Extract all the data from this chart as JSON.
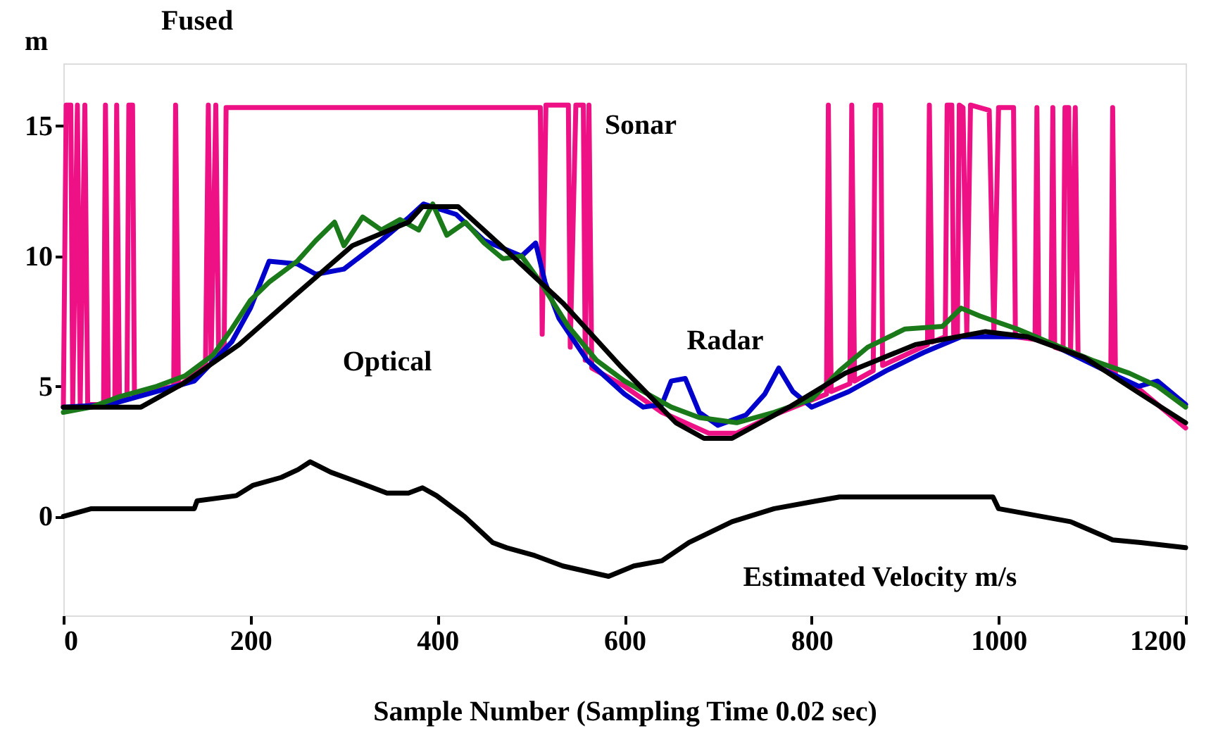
{
  "chart_data": {
    "type": "line",
    "xlabel": "Sample Number (Sampling Time 0.02 sec)",
    "ylabel": "m",
    "xlim": [
      0,
      1200
    ],
    "xticks": [
      0,
      200,
      400,
      600,
      800,
      1000,
      1200
    ],
    "ylim": [
      -3.8,
      17.4
    ],
    "yticks": [
      0,
      5,
      10,
      15
    ],
    "grid": false,
    "line_style": "solid",
    "marker": "none",
    "series": [
      {
        "color": "#ee1185",
        "x": [
          0,
          3,
          8,
          10,
          15,
          18,
          23,
          26,
          43,
          45,
          48,
          55,
          57,
          60,
          68,
          70,
          74,
          76,
          118,
          120,
          123,
          152,
          155,
          158,
          163,
          166,
          172,
          174,
          510,
          512,
          516,
          540,
          542,
          548,
          556,
          558,
          562,
          565,
          600,
          640,
          690,
          720,
          760,
          816,
          818,
          821,
          841,
          843,
          846,
          866,
          868,
          874,
          876,
          924,
          926,
          929,
          943,
          945,
          950,
          952,
          956,
          958,
          962,
          966,
          970,
          990,
          995,
          1000,
          1016,
          1018,
          1039,
          1041,
          1043,
          1056,
          1058,
          1060,
          1069,
          1071,
          1075,
          1077,
          1082,
          1085,
          1120,
          1122,
          1125,
          1150,
          1200
        ],
        "values": [
          4.2,
          15.8,
          15.8,
          4.3,
          15.8,
          4.3,
          15.8,
          4.3,
          4.3,
          15.8,
          4.4,
          4.4,
          15.8,
          4.5,
          4.5,
          15.8,
          15.8,
          4.7,
          5.0,
          15.8,
          5.0,
          5.8,
          15.8,
          6.0,
          15.8,
          6.3,
          6.6,
          15.7,
          15.7,
          7.0,
          15.8,
          15.8,
          6.5,
          15.8,
          15.8,
          6.0,
          15.8,
          5.7,
          5.0,
          4.0,
          3.2,
          3.2,
          3.9,
          4.7,
          15.8,
          4.8,
          5.1,
          15.8,
          5.2,
          5.6,
          15.8,
          15.8,
          5.8,
          6.6,
          15.8,
          6.7,
          6.9,
          15.8,
          15.8,
          7.0,
          7.0,
          15.8,
          15.7,
          7.0,
          15.8,
          15.6,
          7.0,
          15.7,
          15.7,
          6.9,
          6.8,
          15.7,
          6.8,
          6.6,
          15.7,
          6.5,
          6.4,
          15.7,
          15.7,
          6.3,
          15.7,
          6.2,
          5.5,
          15.7,
          5.4,
          4.9,
          3.4
        ]
      },
      {
        "color": "#0000cc",
        "x": [
          0,
          50,
          100,
          140,
          180,
          200,
          220,
          250,
          270,
          300,
          340,
          370,
          385,
          420,
          450,
          490,
          505,
          515,
          530,
          560,
          600,
          620,
          640,
          650,
          665,
          680,
          700,
          730,
          750,
          765,
          780,
          800,
          840,
          880,
          920,
          960,
          1000,
          1040,
          1080,
          1120,
          1150,
          1170,
          1200
        ],
        "values": [
          4.2,
          4.3,
          4.8,
          5.2,
          6.7,
          8.0,
          9.8,
          9.7,
          9.3,
          9.5,
          10.6,
          11.5,
          12.0,
          11.6,
          10.6,
          10.0,
          10.5,
          9.0,
          7.6,
          6.0,
          4.7,
          4.2,
          4.3,
          5.2,
          5.3,
          4.0,
          3.5,
          3.9,
          4.7,
          5.7,
          4.8,
          4.2,
          4.8,
          5.6,
          6.3,
          6.9,
          6.9,
          6.9,
          6.2,
          5.5,
          5.0,
          5.2,
          4.3
        ]
      },
      {
        "color": "#1a7a1a",
        "x": [
          0,
          30,
          60,
          100,
          130,
          160,
          180,
          200,
          220,
          250,
          270,
          290,
          300,
          320,
          340,
          360,
          380,
          395,
          410,
          430,
          450,
          470,
          490,
          510,
          540,
          570,
          600,
          620,
          650,
          680,
          720,
          760,
          800,
          830,
          860,
          900,
          940,
          960,
          980,
          1020,
          1060,
          1100,
          1140,
          1170,
          1200
        ],
        "values": [
          4.0,
          4.2,
          4.6,
          5.0,
          5.4,
          6.2,
          7.2,
          8.3,
          9.0,
          9.8,
          10.6,
          11.3,
          10.4,
          11.5,
          11.0,
          11.4,
          11.0,
          12.0,
          10.8,
          11.3,
          10.5,
          9.9,
          10.0,
          9.0,
          7.3,
          6.0,
          5.2,
          4.8,
          4.2,
          3.8,
          3.6,
          4.0,
          4.5,
          5.6,
          6.5,
          7.2,
          7.3,
          8.0,
          7.7,
          7.2,
          6.6,
          6.0,
          5.5,
          5.0,
          4.2
        ]
      },
      {
        "color": "#000000",
        "x": [
          0,
          83,
          128,
          188,
          248,
          309,
          369,
          384,
          422,
          474,
          534,
          595,
          655,
          685,
          715,
          776,
          836,
          911,
          986,
          1031,
          1092,
          1152,
          1200
        ],
        "values": [
          4.2,
          4.2,
          5.1,
          6.6,
          8.5,
          10.4,
          11.3,
          11.9,
          11.9,
          10.2,
          8.2,
          5.8,
          3.6,
          3.0,
          3.0,
          4.2,
          5.5,
          6.6,
          7.1,
          6.9,
          6.1,
          4.7,
          3.6
        ]
      },
      {
        "color": "#000000",
        "x": [
          0,
          30,
          140,
          143,
          185,
          203,
          233,
          251,
          264,
          286,
          309,
          346,
          369,
          384,
          399,
          429,
          459,
          474,
          504,
          534,
          583,
          610,
          640,
          669,
          715,
          760,
          806,
          830,
          994,
          1000,
          1077,
          1122,
          1152,
          1200
        ],
        "values": [
          0,
          0.3,
          0.3,
          0.6,
          0.8,
          1.2,
          1.5,
          1.8,
          2.1,
          1.7,
          1.4,
          0.9,
          0.9,
          1.1,
          0.8,
          0,
          -1.0,
          -1.2,
          -1.5,
          -1.9,
          -2.3,
          -1.9,
          -1.7,
          -1.0,
          -0.2,
          0.3,
          0.6,
          0.75,
          0.75,
          0.3,
          -0.2,
          -0.9,
          -1.0,
          -1.2
        ]
      }
    ],
    "annotations": [
      "Fused",
      "Sonar",
      "Optical",
      "Radar",
      "Estimated Velocity m/s"
    ]
  }
}
